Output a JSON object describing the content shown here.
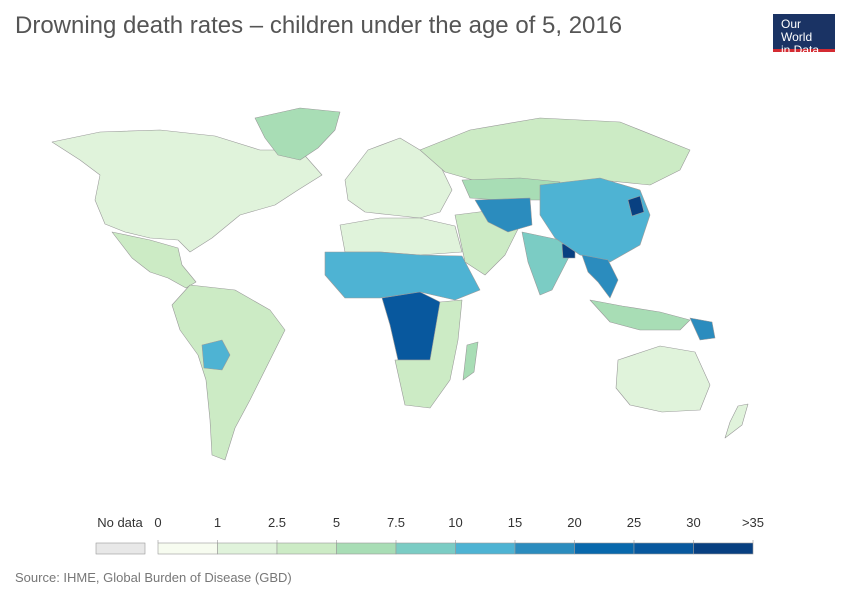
{
  "title": "Drowning death rates – children under the age of 5, 2016",
  "logo": {
    "line1": "Our World",
    "line2": "in Data"
  },
  "source": "Source: IHME, Global Burden of Disease (GBD)",
  "legend": {
    "no_data_label": "No data",
    "no_data_color": "#e8e8e8",
    "ticks": [
      "0",
      "1",
      "2.5",
      "5",
      "7.5",
      "10",
      "15",
      "20",
      "25",
      "30",
      ">35"
    ],
    "colors": [
      "#f7fcf0",
      "#e0f3db",
      "#ccebc5",
      "#a8ddb5",
      "#7bccc4",
      "#4eb3d3",
      "#2b8cbe",
      "#0868ac",
      "#08589e",
      "#084081"
    ]
  },
  "regions": [
    {
      "name": "north-america",
      "bin": 1
    },
    {
      "name": "greenland",
      "bin": 3
    },
    {
      "name": "central-america",
      "bin": 2
    },
    {
      "name": "south-america",
      "bin": 2
    },
    {
      "name": "bolivia",
      "bin": 5
    },
    {
      "name": "europe",
      "bin": 1
    },
    {
      "name": "russia",
      "bin": 2
    },
    {
      "name": "north-africa",
      "bin": 1
    },
    {
      "name": "sahel-africa",
      "bin": 5
    },
    {
      "name": "central-africa",
      "bin": 8
    },
    {
      "name": "southern-africa",
      "bin": 2
    },
    {
      "name": "madagascar",
      "bin": 3
    },
    {
      "name": "middle-east",
      "bin": 2
    },
    {
      "name": "central-asia",
      "bin": 3
    },
    {
      "name": "afghanistan",
      "bin": 6
    },
    {
      "name": "india",
      "bin": 4
    },
    {
      "name": "bangladesh",
      "bin": 9
    },
    {
      "name": "china",
      "bin": 5
    },
    {
      "name": "north-korea",
      "bin": 9
    },
    {
      "name": "southeast-asia",
      "bin": 6
    },
    {
      "name": "indonesia",
      "bin": 3
    },
    {
      "name": "papua-new-guinea",
      "bin": 6
    },
    {
      "name": "australia",
      "bin": 1
    },
    {
      "name": "new-zealand",
      "bin": 1
    }
  ]
}
